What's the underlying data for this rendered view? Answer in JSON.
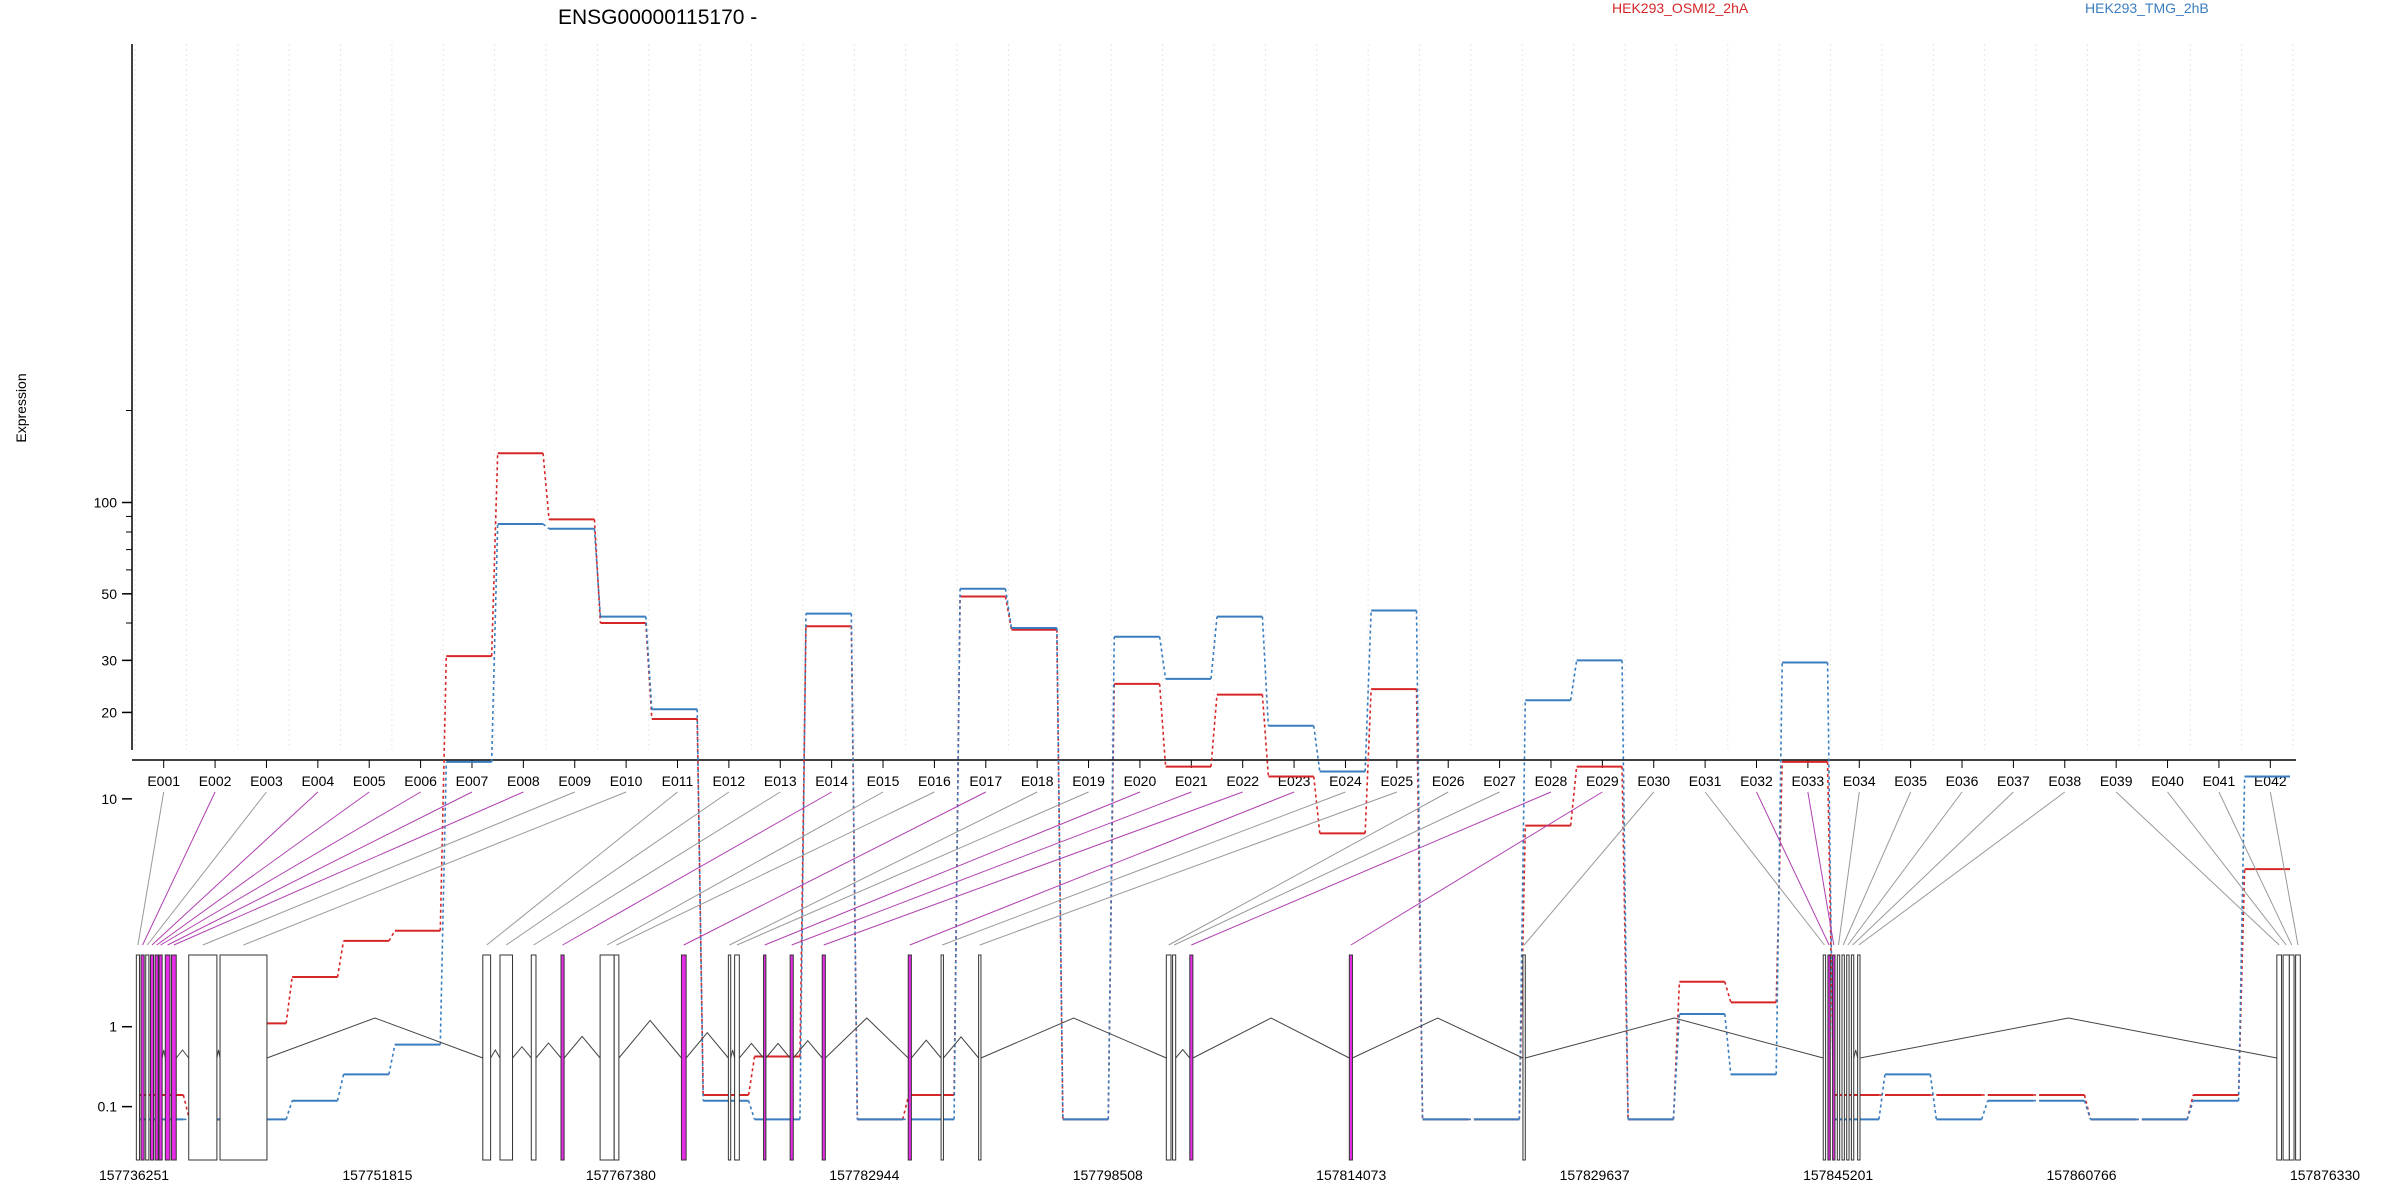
{
  "chart_data": {
    "type": "line",
    "title": "ENSG00000115170 -",
    "ylabel": "Expression",
    "y_scale": "log (with offset)",
    "yticks": [
      0.1,
      1,
      10,
      20,
      30,
      50,
      100
    ],
    "categories": [
      "E001",
      "E002",
      "E003",
      "E004",
      "E005",
      "E006",
      "E007",
      "E008",
      "E009",
      "E010",
      "E011",
      "E012",
      "E013",
      "E014",
      "E015",
      "E016",
      "E017",
      "E018",
      "E019",
      "E020",
      "E021",
      "E022",
      "E023",
      "E024",
      "E025",
      "E026",
      "E027",
      "E028",
      "E029",
      "E030",
      "E031",
      "E032",
      "E033",
      "E034",
      "E035",
      "E036",
      "E037",
      "E038",
      "E039",
      "E040",
      "E041",
      "E042"
    ],
    "series": [
      {
        "name": "HEK293_OSMI2_2hA",
        "color": "#d62728",
        "values": [
          0.2,
          0.0,
          1.05,
          1.9,
          2.8,
          3.1,
          31,
          145,
          88,
          40,
          19,
          0.2,
          0.6,
          39,
          0.0,
          0.2,
          49,
          38,
          0.0,
          25,
          13,
          23,
          12,
          7.5,
          24,
          0.0,
          0.0,
          8,
          13,
          0.0,
          1.8,
          1.4,
          13.5,
          0.2,
          0.2,
          0.2,
          0.2,
          0.2,
          0.0,
          0.0,
          0.2,
          5.5
        ]
      },
      {
        "name": "HEK293_TMG_2hB",
        "color": "#3a7dbf",
        "values": [
          0.0,
          0.0,
          0.0,
          0.15,
          0.4,
          0.75,
          13.5,
          85,
          82,
          42,
          20.5,
          0.15,
          0.0,
          43,
          0.0,
          0.0,
          52,
          38.5,
          0.0,
          36,
          26,
          42,
          18,
          12.5,
          44,
          0.0,
          0.0,
          22,
          30,
          0.0,
          1.2,
          0.4,
          29.5,
          0.0,
          0.4,
          0.0,
          0.15,
          0.15,
          0.0,
          0.0,
          0.15,
          12
        ]
      }
    ],
    "exon_highlight": [
      false,
      true,
      false,
      true,
      true,
      true,
      true,
      true,
      false,
      false,
      false,
      false,
      false,
      true,
      false,
      false,
      true,
      false,
      false,
      true,
      true,
      true,
      true,
      false,
      false,
      false,
      false,
      true,
      true,
      false,
      false,
      true,
      true,
      false,
      false,
      false,
      false,
      false,
      false,
      false,
      false,
      false
    ],
    "genomic_axis": {
      "tick_labels": [
        "157736251",
        "157751815",
        "157767380",
        "157782944",
        "157798508",
        "157814073",
        "157829637",
        "157845201",
        "157860766",
        "157876330"
      ],
      "range": [
        157736251,
        157876330
      ]
    },
    "grid": "vertical dotted at each exon",
    "legend_position": "top-right"
  },
  "colors": {
    "highlight": "#e62ce6",
    "connector_highlight": "#b040b0",
    "connector_normal": "#999999",
    "gene_outline": "#333333"
  }
}
